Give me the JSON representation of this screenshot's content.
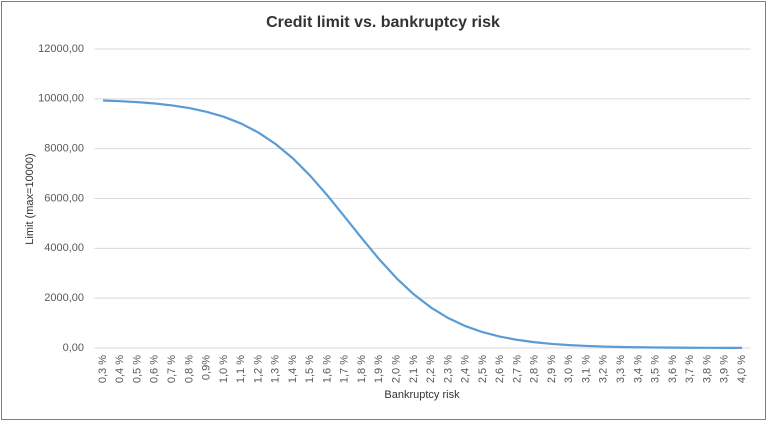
{
  "chart_data": {
    "type": "line",
    "title": "Credit limit vs. bankruptcy risk",
    "x_label": "Bankruptcy risk",
    "y_label": "Limit (max=10000)",
    "categories": [
      "0,3 %",
      "0,4 %",
      "0,5 %",
      "0,6 %",
      "0,7 %",
      "0,8 %",
      "0,9%",
      "1,0 %",
      "1,1 %",
      "1,2 %",
      "1,3 %",
      "1,4 %",
      "1,5 %",
      "1,6 %",
      "1,7 %",
      "1,8 %",
      "1,9 %",
      "2,0 %",
      "2,1 %",
      "2,2 %",
      "2,3 %",
      "2,4 %",
      "2,5 %",
      "2,6 %",
      "2,7 %",
      "2,8 %",
      "2,9 %",
      "3,0 %",
      "3,1 %",
      "3,2 %",
      "3,3 %",
      "3,4 %",
      "3,5 %",
      "3,6 %",
      "3,7 %",
      "3,8 %",
      "3,9 %",
      "4,0 %"
    ],
    "series": [
      {
        "name": "Limit",
        "color": "#5b9bd5",
        "values": [
          9933,
          9906,
          9867,
          9812,
          9735,
          9628,
          9481,
          9279,
          9007,
          8647,
          8183,
          7604,
          6910,
          6118,
          5262,
          4391,
          3555,
          2799,
          2150,
          1618,
          1197,
          875,
          633,
          455,
          325,
          231,
          164,
          116,
          82,
          58,
          41,
          29,
          20,
          14,
          10,
          7,
          5,
          4
        ]
      }
    ],
    "ylim": [
      0,
      12000
    ],
    "yticks": [
      {
        "value": 0,
        "label": "0,00"
      },
      {
        "value": 2000,
        "label": "2000,00"
      },
      {
        "value": 4000,
        "label": "4000,00"
      },
      {
        "value": 6000,
        "label": "6000,00"
      },
      {
        "value": 8000,
        "label": "8000,00"
      },
      {
        "value": 10000,
        "label": "10000,00"
      },
      {
        "value": 12000,
        "label": "12000,00"
      }
    ],
    "grid": true
  }
}
